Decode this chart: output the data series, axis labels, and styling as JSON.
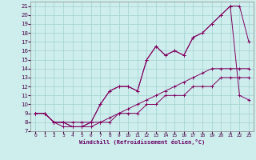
{
  "xlabel": "Windchill (Refroidissement éolien,°C)",
  "bg_color": "#ceeeed",
  "grid_color": "#a8d4d4",
  "line_color": "#800060",
  "xlim": [
    -0.5,
    23.5
  ],
  "ylim": [
    7,
    21.5
  ],
  "xticks": [
    0,
    1,
    2,
    3,
    4,
    5,
    6,
    7,
    8,
    9,
    10,
    11,
    12,
    13,
    14,
    15,
    16,
    17,
    18,
    19,
    20,
    21,
    22,
    23
  ],
  "yticks": [
    7,
    8,
    9,
    10,
    11,
    12,
    13,
    14,
    15,
    16,
    17,
    18,
    19,
    20,
    21
  ],
  "series1_x": [
    0,
    1,
    2,
    3,
    4,
    5,
    6,
    7,
    8,
    9,
    10,
    11,
    12,
    13,
    14,
    15,
    16,
    17,
    18,
    19,
    20,
    21,
    22,
    23
  ],
  "series1_y": [
    9,
    9,
    8,
    8,
    8,
    8,
    8,
    8,
    8,
    9,
    9,
    9,
    10,
    10,
    11,
    11,
    11,
    12,
    12,
    12,
    13,
    13,
    13,
    13
  ],
  "series2_x": [
    0,
    1,
    2,
    3,
    4,
    5,
    6,
    7,
    8,
    9,
    10,
    11,
    12,
    13,
    14,
    15,
    16,
    17,
    18,
    19,
    20,
    21,
    22,
    23
  ],
  "series2_y": [
    9,
    9,
    8,
    7.5,
    7.5,
    7.5,
    7.5,
    8,
    8.5,
    9,
    9.5,
    10,
    10.5,
    11,
    11.5,
    12,
    12.5,
    13,
    13.5,
    14,
    14,
    14,
    14,
    14
  ],
  "series3_x": [
    0,
    1,
    2,
    3,
    4,
    5,
    6,
    7,
    8,
    9,
    10,
    11,
    12,
    13,
    14,
    15,
    16,
    17,
    18,
    19,
    20,
    21,
    22,
    23
  ],
  "series3_y": [
    9,
    9,
    8,
    8,
    7.5,
    7.5,
    8,
    10,
    11.5,
    12,
    12,
    11.5,
    15,
    16.5,
    15.5,
    16,
    15.5,
    17.5,
    18,
    19,
    20,
    21,
    21,
    17
  ],
  "series4_x": [
    0,
    1,
    2,
    3,
    4,
    5,
    6,
    7,
    8,
    9,
    10,
    11,
    12,
    13,
    14,
    15,
    16,
    17,
    18,
    19,
    20,
    21,
    22,
    23
  ],
  "series4_y": [
    9,
    9,
    8,
    8,
    7.5,
    7.5,
    8,
    10,
    11.5,
    12,
    12,
    11.5,
    15,
    16.5,
    15.5,
    16,
    15.5,
    17.5,
    18,
    19,
    20,
    21,
    11,
    10.5
  ]
}
